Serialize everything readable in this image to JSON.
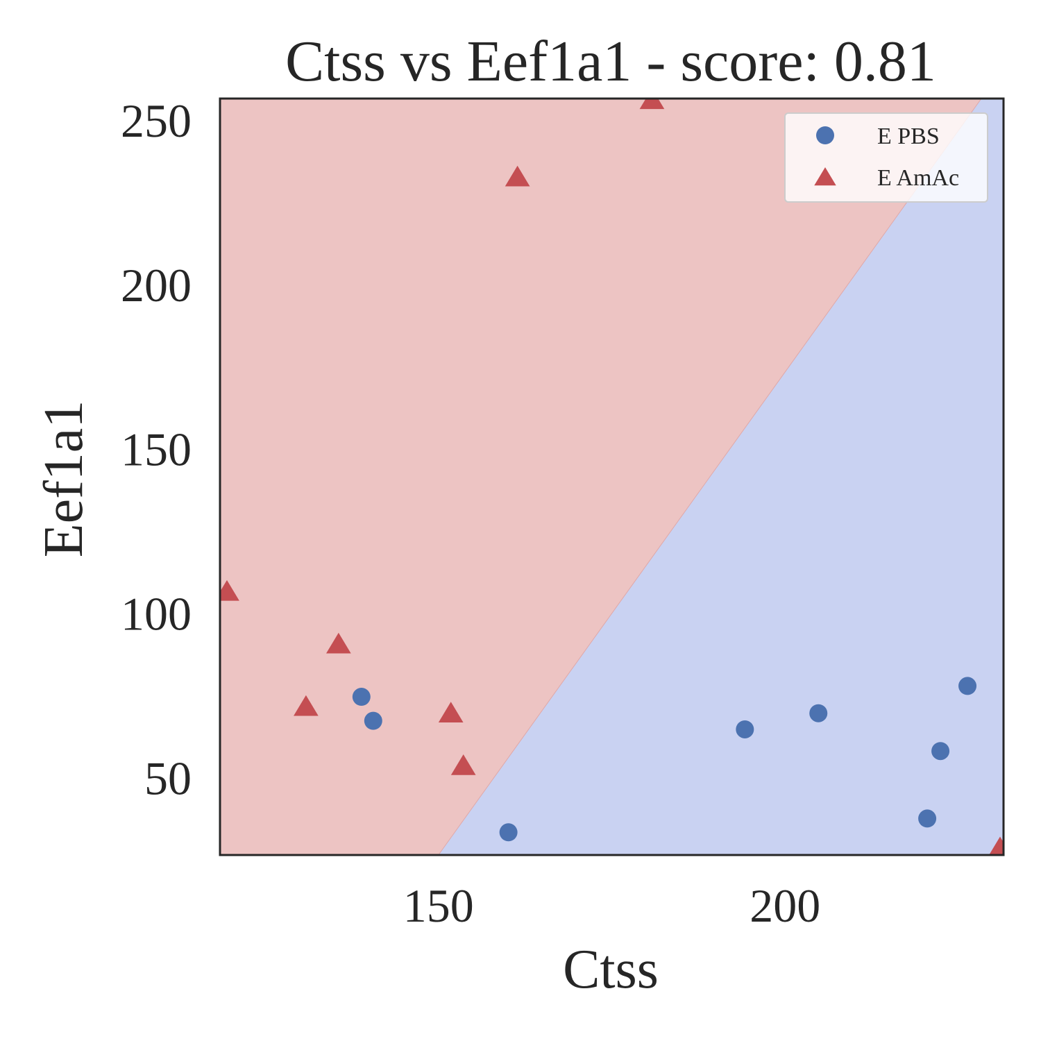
{
  "chart_data": {
    "type": "scatter",
    "title": "Ctss vs Eef1a1 - score: 0.81",
    "xlabel": "Ctss",
    "ylabel": "Eef1a1",
    "xlim": [
      118.5,
      231.5
    ],
    "ylim": [
      26.5,
      256.5
    ],
    "xticks": [
      150,
      200
    ],
    "yticks": [
      50,
      100,
      150,
      200,
      250
    ],
    "grid": false,
    "legend_position": "top-right",
    "decision_regions": [
      {
        "class": "E AmAc",
        "color": "#edc4c3",
        "side": "upper-left"
      },
      {
        "class": "E PBS",
        "color": "#c9d2f2",
        "side": "lower-right"
      }
    ],
    "decision_boundary": [
      [
        150,
        26.5
      ],
      [
        228.3,
        256.5
      ]
    ],
    "series": [
      {
        "name": "E PBS",
        "marker": "circle",
        "color": "#4c72b0",
        "x": [
          138.9,
          140.6,
          160.1,
          194.2,
          204.8,
          220.5,
          222.4,
          226.3
        ],
        "y": [
          74.6,
          67.3,
          33.4,
          64.7,
          69.6,
          37.6,
          58.1,
          77.9
        ]
      },
      {
        "name": "E AmAc",
        "marker": "triangle",
        "color": "#c44e52",
        "x": [
          119.5,
          130.9,
          135.6,
          151.8,
          153.6,
          161.4,
          180.8,
          231
        ],
        "y": [
          106.5,
          71.5,
          90.5,
          69.5,
          53.5,
          232.5,
          256,
          28.5
        ]
      }
    ]
  }
}
